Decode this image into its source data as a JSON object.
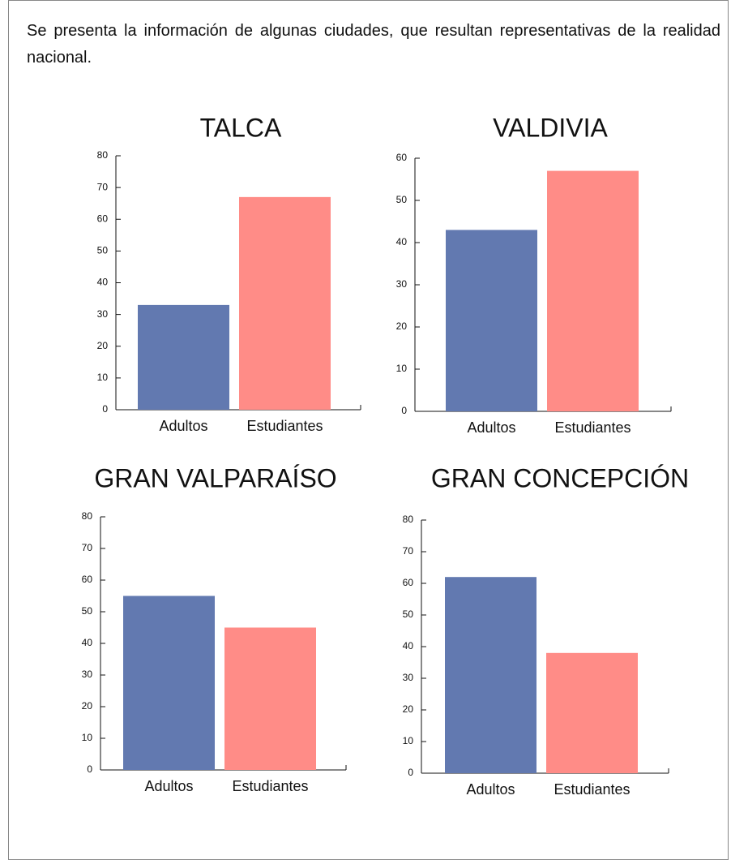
{
  "intro": "Se presenta la información de algunas ciudades, que resultan representativas de la realidad nacional.",
  "chart_data": [
    {
      "type": "bar",
      "title": "TALCA",
      "categories": [
        "Adultos",
        "Estudiantes"
      ],
      "values": [
        33,
        67
      ],
      "colors": [
        "#6279b0",
        "#ff8c87"
      ],
      "ylim": [
        0,
        80
      ],
      "yticks": [
        0,
        10,
        20,
        30,
        40,
        50,
        60,
        70,
        80
      ]
    },
    {
      "type": "bar",
      "title": "VALDIVIA",
      "categories": [
        "Adultos",
        "Estudiantes"
      ],
      "values": [
        43,
        57
      ],
      "colors": [
        "#6279b0",
        "#ff8c87"
      ],
      "ylim": [
        0,
        60
      ],
      "yticks": [
        0,
        10,
        20,
        30,
        40,
        50,
        60
      ]
    },
    {
      "type": "bar",
      "title": "GRAN VALPARAÍSO",
      "categories": [
        "Adultos",
        "Estudiantes"
      ],
      "values": [
        55,
        45
      ],
      "colors": [
        "#6279b0",
        "#ff8c87"
      ],
      "ylim": [
        0,
        80
      ],
      "yticks": [
        0,
        10,
        20,
        30,
        40,
        50,
        60,
        70,
        80
      ]
    },
    {
      "type": "bar",
      "title": "GRAN CONCEPCIÓN",
      "categories": [
        "Adultos",
        "Estudiantes"
      ],
      "values": [
        62,
        38
      ],
      "colors": [
        "#6279b0",
        "#ff8c87"
      ],
      "ylim": [
        0,
        80
      ],
      "yticks": [
        0,
        10,
        20,
        30,
        40,
        50,
        60,
        70,
        80
      ]
    }
  ]
}
